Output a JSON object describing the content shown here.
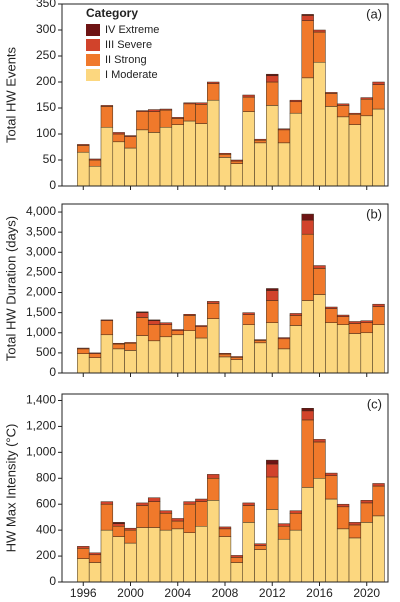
{
  "chart_data": [
    {
      "type": "bar",
      "stacked": true,
      "panel_label": "(a)",
      "ylabel": "Total HW Events",
      "legend_title": "Category",
      "legend": "upper-left",
      "x": [
        1996,
        1997,
        1998,
        1999,
        2000,
        2001,
        2002,
        2003,
        2004,
        2005,
        2006,
        2007,
        2008,
        2009,
        2010,
        2011,
        2012,
        2013,
        2014,
        2015,
        2016,
        2017,
        2018,
        2019,
        2020,
        2021
      ],
      "xlim": [
        1994.2,
        2021.8
      ],
      "xticks": [
        1996,
        2000,
        2004,
        2008,
        2012,
        2016,
        2020
      ],
      "ylim": [
        0,
        350
      ],
      "yticks": [
        0,
        50,
        100,
        150,
        200,
        250,
        300,
        350
      ],
      "series": [
        {
          "name": "I Moderate",
          "color": "#fcd77f",
          "values": [
            65,
            38,
            113,
            85,
            73,
            108,
            103,
            113,
            118,
            125,
            120,
            165,
            55,
            43,
            143,
            83,
            155,
            83,
            140,
            208,
            238,
            153,
            133,
            118,
            135,
            148
          ]
        },
        {
          "name": "II Strong",
          "color": "#f0792b",
          "values": [
            13,
            12,
            40,
            15,
            22,
            35,
            40,
            33,
            12,
            33,
            37,
            32,
            6,
            5,
            28,
            5,
            45,
            25,
            22,
            110,
            58,
            25,
            22,
            20,
            32,
            47
          ]
        },
        {
          "name": "III Severe",
          "color": "#d1432b",
          "values": [
            2,
            2,
            2,
            3,
            2,
            2,
            4,
            2,
            2,
            2,
            3,
            3,
            2,
            2,
            4,
            2,
            12,
            2,
            3,
            10,
            4,
            2,
            3,
            2,
            3,
            5
          ]
        },
        {
          "name": "IV Extreme",
          "color": "#6e1414",
          "values": [
            0,
            0,
            0,
            0,
            0,
            0,
            0,
            0,
            0,
            0,
            0,
            0,
            0,
            0,
            0,
            0,
            3,
            0,
            0,
            2,
            0,
            0,
            0,
            0,
            0,
            0
          ]
        }
      ]
    },
    {
      "type": "bar",
      "stacked": true,
      "panel_label": "(b)",
      "ylabel": "Total HW Duration (days)",
      "x": [
        1996,
        1997,
        1998,
        1999,
        2000,
        2001,
        2002,
        2003,
        2004,
        2005,
        2006,
        2007,
        2008,
        2009,
        2010,
        2011,
        2012,
        2013,
        2014,
        2015,
        2016,
        2017,
        2018,
        2019,
        2020,
        2021
      ],
      "xlim": [
        1994.2,
        2021.8
      ],
      "xticks": [
        1996,
        2000,
        2004,
        2008,
        2012,
        2016,
        2020
      ],
      "ylim": [
        0,
        4200
      ],
      "yticks": [
        0,
        500,
        {
          "value": 1000,
          "label": "1,000"
        },
        {
          "value": 1500,
          "label": "1,500"
        },
        {
          "value": 2000,
          "label": "2,000"
        },
        {
          "value": 2500,
          "label": "2,500"
        },
        {
          "value": 3000,
          "label": "3,000"
        },
        {
          "value": 3500,
          "label": "3,500"
        },
        {
          "value": 4000,
          "label": "4,000"
        }
      ],
      "series": [
        {
          "name": "I Moderate",
          "color": "#fcd77f",
          "values": [
            480,
            380,
            950,
            600,
            560,
            930,
            800,
            900,
            950,
            1050,
            870,
            1350,
            400,
            330,
            1200,
            750,
            1250,
            600,
            1180,
            1800,
            1950,
            1250,
            1200,
            980,
            1000,
            1200
          ]
        },
        {
          "name": "II Strong",
          "color": "#f0792b",
          "values": [
            120,
            100,
            350,
            120,
            180,
            450,
            400,
            300,
            100,
            380,
            280,
            380,
            70,
            60,
            250,
            60,
            550,
            250,
            250,
            1650,
            650,
            350,
            200,
            250,
            250,
            450
          ]
        },
        {
          "name": "III Severe",
          "color": "#d1432b",
          "values": [
            20,
            20,
            20,
            20,
            20,
            120,
            100,
            50,
            30,
            30,
            30,
            50,
            20,
            20,
            50,
            20,
            250,
            30,
            50,
            350,
            70,
            40,
            40,
            50,
            50,
            60
          ]
        },
        {
          "name": "IV Extreme",
          "color": "#6e1414",
          "values": [
            0,
            0,
            0,
            0,
            0,
            20,
            20,
            0,
            0,
            0,
            0,
            0,
            0,
            0,
            0,
            0,
            50,
            0,
            0,
            150,
            0,
            0,
            0,
            0,
            0,
            0
          ]
        }
      ]
    },
    {
      "type": "bar",
      "stacked": true,
      "panel_label": "(c)",
      "ylabel": "HW Max Intensity (°C)",
      "x": [
        1996,
        1997,
        1998,
        1999,
        2000,
        2001,
        2002,
        2003,
        2004,
        2005,
        2006,
        2007,
        2008,
        2009,
        2010,
        2011,
        2012,
        2013,
        2014,
        2015,
        2016,
        2017,
        2018,
        2019,
        2020,
        2021
      ],
      "xlim": [
        1994.2,
        2021.8
      ],
      "xticks": [
        1996,
        2000,
        2004,
        2008,
        2012,
        2016,
        2020
      ],
      "ylim": [
        0,
        1450
      ],
      "yticks": [
        0,
        200,
        400,
        600,
        800,
        {
          "value": 1000,
          "label": "1,000"
        },
        {
          "value": 1200,
          "label": "1,200"
        },
        {
          "value": 1400,
          "label": "1,400"
        }
      ],
      "series": [
        {
          "name": "I Moderate",
          "color": "#fcd77f",
          "values": [
            180,
            150,
            400,
            350,
            300,
            420,
            420,
            400,
            410,
            380,
            430,
            630,
            350,
            150,
            460,
            250,
            560,
            330,
            400,
            730,
            800,
            640,
            410,
            340,
            460,
            510
          ]
        },
        {
          "name": "II Strong",
          "color": "#f0792b",
          "values": [
            80,
            60,
            200,
            80,
            100,
            170,
            200,
            130,
            60,
            220,
            190,
            170,
            60,
            40,
            130,
            30,
            250,
            100,
            130,
            520,
            280,
            180,
            170,
            100,
            150,
            230
          ]
        },
        {
          "name": "III Severe",
          "color": "#d1432b",
          "values": [
            15,
            15,
            20,
            20,
            15,
            20,
            30,
            20,
            20,
            20,
            20,
            30,
            15,
            15,
            20,
            15,
            100,
            20,
            20,
            70,
            20,
            20,
            20,
            20,
            20,
            20
          ]
        },
        {
          "name": "IV Extreme",
          "color": "#6e1414",
          "values": [
            0,
            0,
            0,
            10,
            0,
            0,
            0,
            0,
            0,
            0,
            0,
            0,
            0,
            0,
            0,
            0,
            30,
            0,
            0,
            20,
            0,
            0,
            0,
            0,
            0,
            0
          ]
        }
      ]
    }
  ]
}
